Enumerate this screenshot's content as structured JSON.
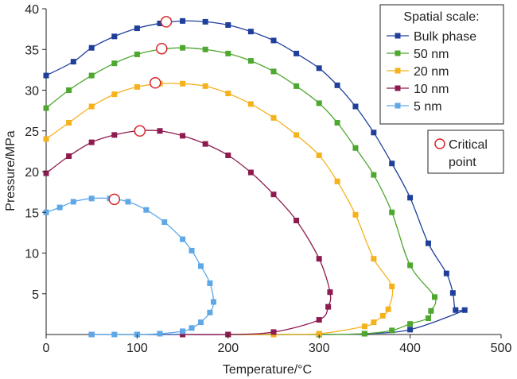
{
  "chart_data": {
    "type": "line",
    "title": "",
    "xlabel": "Temperature/°C",
    "ylabel": "Pressure/MPa",
    "xlim": [
      0,
      500
    ],
    "ylim": [
      0,
      40
    ],
    "x_ticks": [
      "0",
      "100",
      "200",
      "300",
      "400",
      "500"
    ],
    "y_ticks": [
      "5",
      "10",
      "15",
      "20",
      "25",
      "30",
      "35",
      "40"
    ],
    "legend_title": "Spatial scale:",
    "legend_position": "top-right",
    "series": [
      {
        "name": "Bulk phase",
        "color": "#1f3f9a",
        "points": [
          [
            0,
            31.8
          ],
          [
            30,
            33.5
          ],
          [
            50,
            35.2
          ],
          [
            75,
            36.6
          ],
          [
            100,
            37.6
          ],
          [
            125,
            38.2
          ],
          [
            150,
            38.5
          ],
          [
            175,
            38.4
          ],
          [
            200,
            38.0
          ],
          [
            225,
            37.2
          ],
          [
            250,
            36.1
          ],
          [
            275,
            34.5
          ],
          [
            300,
            32.7
          ],
          [
            320,
            30.6
          ],
          [
            340,
            28.0
          ],
          [
            360,
            24.8
          ],
          [
            380,
            21.0
          ],
          [
            400,
            16.8
          ],
          [
            420,
            11.2
          ],
          [
            440,
            7.5
          ],
          [
            447,
            5.1
          ],
          [
            450,
            3.0
          ],
          [
            460,
            3.0
          ],
          [
            400,
            0.6
          ],
          [
            350,
            0.1
          ],
          [
            300,
            0.0
          ],
          [
            200,
            0.0
          ],
          [
            100,
            0.0
          ],
          [
            50,
            0.0
          ]
        ]
      },
      {
        "name": "50 nm",
        "color": "#4ea72e",
        "points": [
          [
            0,
            27.8
          ],
          [
            25,
            30.0
          ],
          [
            50,
            31.8
          ],
          [
            75,
            33.3
          ],
          [
            100,
            34.4
          ],
          [
            125,
            35.0
          ],
          [
            150,
            35.2
          ],
          [
            175,
            35.0
          ],
          [
            200,
            34.5
          ],
          [
            225,
            33.6
          ],
          [
            250,
            32.3
          ],
          [
            275,
            30.5
          ],
          [
            300,
            28.4
          ],
          [
            320,
            26.0
          ],
          [
            340,
            22.9
          ],
          [
            360,
            19.6
          ],
          [
            380,
            15.0
          ],
          [
            400,
            8.5
          ],
          [
            427,
            4.6
          ],
          [
            423,
            2.9
          ],
          [
            420,
            2.0
          ],
          [
            400,
            1.3
          ],
          [
            380,
            0.5
          ],
          [
            350,
            0.1
          ],
          [
            300,
            0.0
          ],
          [
            200,
            0.0
          ]
        ]
      },
      {
        "name": "20 nm",
        "color": "#f5b21b",
        "points": [
          [
            0,
            24.0
          ],
          [
            25,
            26.0
          ],
          [
            50,
            28.0
          ],
          [
            75,
            29.5
          ],
          [
            100,
            30.4
          ],
          [
            125,
            30.8
          ],
          [
            150,
            30.8
          ],
          [
            175,
            30.5
          ],
          [
            200,
            29.6
          ],
          [
            225,
            28.3
          ],
          [
            250,
            26.6
          ],
          [
            275,
            24.5
          ],
          [
            300,
            22.0
          ],
          [
            320,
            18.8
          ],
          [
            340,
            14.7
          ],
          [
            360,
            9.3
          ],
          [
            380,
            5.9
          ],
          [
            376,
            3.1
          ],
          [
            370,
            2.3
          ],
          [
            360,
            1.5
          ],
          [
            350,
            1.0
          ],
          [
            300,
            0.1
          ],
          [
            250,
            0.0
          ],
          [
            200,
            0.0
          ]
        ]
      },
      {
        "name": "10 nm",
        "color": "#8e1b4f",
        "points": [
          [
            0,
            19.8
          ],
          [
            25,
            21.9
          ],
          [
            50,
            23.6
          ],
          [
            75,
            24.5
          ],
          [
            100,
            25.0
          ],
          [
            125,
            25.0
          ],
          [
            150,
            24.4
          ],
          [
            175,
            23.4
          ],
          [
            200,
            22.0
          ],
          [
            225,
            19.9
          ],
          [
            250,
            17.2
          ],
          [
            275,
            14.0
          ],
          [
            300,
            9.3
          ],
          [
            312,
            5.2
          ],
          [
            310,
            3.4
          ],
          [
            300,
            1.8
          ],
          [
            250,
            0.3
          ],
          [
            200,
            0.0
          ],
          [
            150,
            0.0
          ]
        ]
      },
      {
        "name": "5 nm",
        "color": "#5fa8e8",
        "points": [
          [
            0,
            15.0
          ],
          [
            15,
            15.6
          ],
          [
            30,
            16.3
          ],
          [
            50,
            16.7
          ],
          [
            70,
            16.7
          ],
          [
            90,
            16.3
          ],
          [
            110,
            15.3
          ],
          [
            130,
            13.8
          ],
          [
            150,
            11.7
          ],
          [
            160,
            10.3
          ],
          [
            170,
            8.4
          ],
          [
            180,
            6.3
          ],
          [
            184,
            4.0
          ],
          [
            180,
            2.7
          ],
          [
            170,
            1.5
          ],
          [
            160,
            0.8
          ],
          [
            150,
            0.4
          ],
          [
            125,
            0.1
          ],
          [
            100,
            0.0
          ],
          [
            75,
            0.0
          ],
          [
            50,
            0.0
          ]
        ]
      }
    ],
    "critical_points": {
      "legend_label": "Critical point",
      "points": [
        [
          132,
          38.4
        ],
        [
          127,
          35.1
        ],
        [
          120,
          30.9
        ],
        [
          103,
          25.0
        ],
        [
          75,
          16.6
        ]
      ]
    }
  }
}
